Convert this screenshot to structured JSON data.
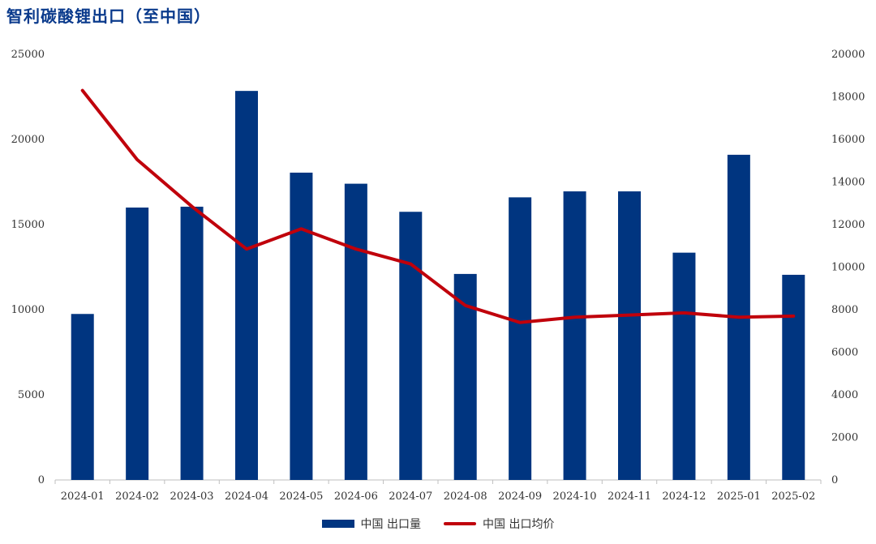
{
  "chart_data": {
    "type": "bar",
    "title": "智利碳酸锂出口（至中国）",
    "categories": [
      "2024-01",
      "2024-02",
      "2024-03",
      "2024-04",
      "2024-05",
      "2024-06",
      "2024-07",
      "2024-08",
      "2024-09",
      "2024-10",
      "2024-11",
      "2024-12",
      "2025-01",
      "2025-02"
    ],
    "series": [
      {
        "name": "中国  出口量",
        "type": "bar",
        "axis": "left",
        "color": "#003580",
        "values": [
          9750,
          16000,
          16050,
          22850,
          18050,
          17400,
          15750,
          12100,
          16600,
          16950,
          16950,
          13350,
          19100,
          12050
        ]
      },
      {
        "name": "中国  出口均价",
        "type": "line",
        "axis": "right",
        "color": "#c0000b",
        "values": [
          18300,
          15050,
          12850,
          10850,
          11800,
          10850,
          10150,
          8200,
          7400,
          7650,
          7750,
          7850,
          7650,
          7700
        ]
      }
    ],
    "y_left": {
      "min": 0,
      "max": 25000,
      "ticks": [
        "0",
        "5000",
        "10000",
        "15000",
        "20000",
        "25000"
      ]
    },
    "y_right": {
      "min": 0,
      "max": 20000,
      "ticks": [
        "0",
        "2000",
        "4000",
        "6000",
        "8000",
        "10000",
        "12000",
        "14000",
        "16000",
        "18000",
        "20000"
      ]
    },
    "grid": false,
    "legend_position": "bottom"
  }
}
